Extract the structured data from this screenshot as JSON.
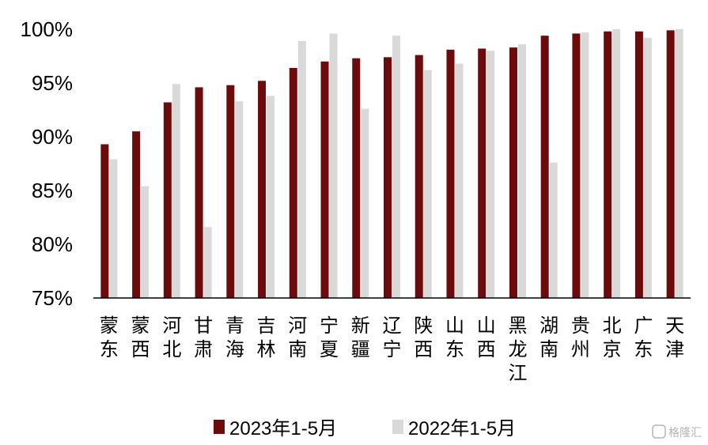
{
  "chart_data": {
    "type": "bar",
    "categories": [
      "蒙东",
      "蒙西",
      "河北",
      "甘肃",
      "青海",
      "吉林",
      "河南",
      "宁夏",
      "新疆",
      "辽宁",
      "陕西",
      "山东",
      "山西",
      "黑龙江",
      "湖南",
      "贵州",
      "北京",
      "广东",
      "天津"
    ],
    "series": [
      {
        "name": "2023年1-5月",
        "color": "#6b0b0b",
        "values": [
          89.3,
          90.5,
          93.2,
          94.6,
          94.8,
          95.2,
          96.4,
          97.0,
          97.3,
          97.4,
          97.6,
          98.1,
          98.2,
          98.3,
          99.4,
          99.6,
          99.8,
          99.8,
          99.9
        ]
      },
      {
        "name": "2022年1-5月",
        "color": "#d9d9d9",
        "values": [
          87.9,
          85.4,
          94.9,
          81.6,
          93.3,
          93.8,
          98.9,
          99.6,
          92.6,
          99.4,
          96.2,
          96.8,
          98.0,
          98.6,
          87.6,
          99.7,
          100.0,
          99.2,
          100.0
        ]
      }
    ],
    "ylim": [
      75,
      100
    ],
    "yticks": [
      "75%",
      "80%",
      "85%",
      "90%",
      "95%",
      "100%"
    ],
    "ytick_values": [
      75,
      80,
      85,
      90,
      95,
      100
    ],
    "legend": "bottom-center",
    "grid": false
  },
  "watermark": "格隆汇"
}
